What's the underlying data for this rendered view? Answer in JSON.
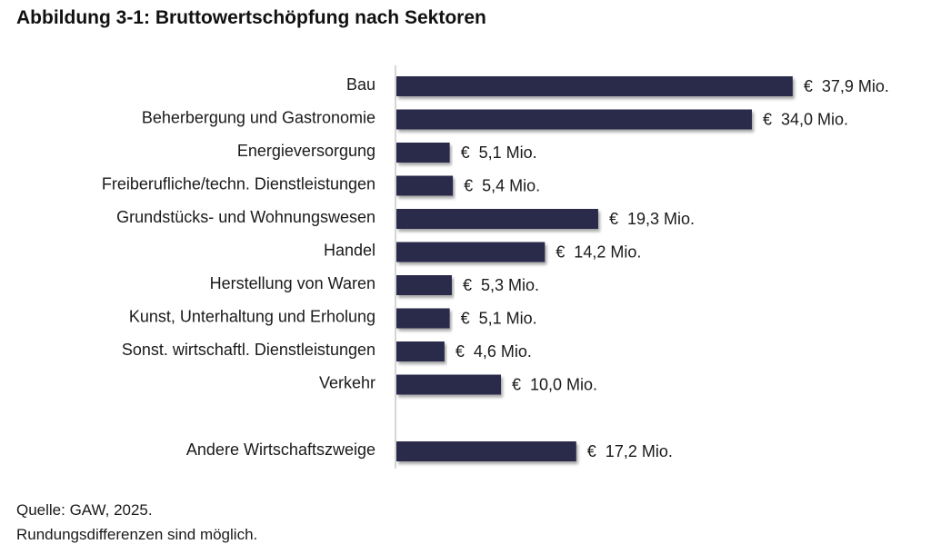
{
  "title": "Abbildung 3-1: Bruttowertschöpfung nach Sektoren",
  "footer": {
    "source": "Quelle: GAW, 2025.",
    "note": "Rundungsdifferenzen sind möglich."
  },
  "colors": {
    "bar": "#2b2a4c",
    "axis": "#c8c8c8",
    "text": "#1a1a1a"
  },
  "chart_data": {
    "type": "bar",
    "orientation": "horizontal",
    "categories": [
      "Bau",
      "Beherbergung und Gastronomie",
      "Energieversorgung",
      "Freiberufliche/techn. Dienstleistungen",
      "Grundstücks- und Wohnungswesen",
      "Handel",
      "Herstellung von Waren",
      "Kunst, Unterhaltung und Erholung",
      "Sonst. wirtschaftl. Dienstleistungen",
      "Verkehr",
      "Andere Wirtschaftszweige"
    ],
    "values": [
      37.9,
      34.0,
      5.1,
      5.4,
      19.3,
      14.2,
      5.3,
      5.1,
      4.6,
      10.0,
      17.2
    ],
    "value_labels": [
      "€  37,9 Mio.",
      "€  34,0 Mio.",
      "€  5,1 Mio.",
      "€  5,4 Mio.",
      "€  19,3 Mio.",
      "€  14,2 Mio.",
      "€  5,3 Mio.",
      "€  5,1 Mio.",
      "€  4,6 Mio.",
      "€  10,0 Mio.",
      "€  17,2 Mio."
    ],
    "unit": "Mio. €",
    "xlim": [
      0,
      38
    ],
    "grid": false,
    "legend": "none",
    "gap_before_last": true
  }
}
